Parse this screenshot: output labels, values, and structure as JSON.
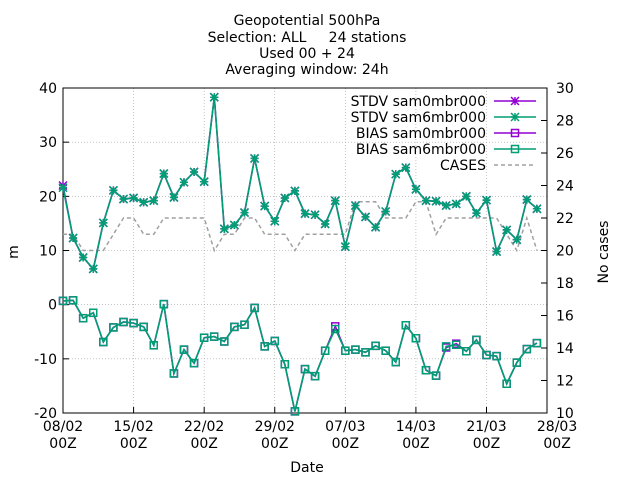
{
  "chart_data": {
    "type": "line",
    "title_lines": [
      "Geopotential 500hPa",
      "Selection: ALL     24 stations",
      "Used 00 + 24",
      "Averaging window: 24h"
    ],
    "xlabel": "Date",
    "ylabel": "m",
    "y2label": "No cases",
    "ylim": [
      -20,
      40
    ],
    "y2lim": [
      10,
      30
    ],
    "yticks": [
      -20,
      -10,
      0,
      10,
      20,
      30,
      40
    ],
    "y2ticks": [
      10,
      12,
      14,
      16,
      18,
      20,
      22,
      24,
      26,
      28,
      30
    ],
    "xlim_days": [
      0,
      48
    ],
    "xticks": [
      {
        "day": 0,
        "line1": "08/02",
        "line2": "00Z"
      },
      {
        "day": 7,
        "line1": "15/02",
        "line2": "00Z"
      },
      {
        "day": 14,
        "line1": "22/02",
        "line2": "00Z"
      },
      {
        "day": 21,
        "line1": "29/02",
        "line2": "00Z"
      },
      {
        "day": 28,
        "line1": "07/03",
        "line2": "00Z"
      },
      {
        "day": 35,
        "line1": "14/03",
        "line2": "00Z"
      },
      {
        "day": 42,
        "line1": "21/03",
        "line2": "00Z"
      },
      {
        "day": 49,
        "line1": "28/03",
        "line2": "00Z"
      }
    ],
    "grid": true,
    "legend_position": "top-right",
    "x_days": [
      0,
      1,
      2,
      3,
      4,
      5,
      6,
      7,
      8,
      9,
      10,
      11,
      12,
      13,
      14,
      15,
      16,
      17,
      18,
      19,
      20,
      21,
      22,
      23,
      24,
      25,
      26,
      27,
      28,
      29,
      30,
      31,
      32,
      33,
      34,
      35,
      36,
      37,
      38,
      39,
      40,
      41,
      42,
      43,
      44,
      45,
      46,
      47
    ],
    "series": [
      {
        "name": "STDV sam0mbr000",
        "color": "#9400d3",
        "marker": "star",
        "axis": "y",
        "values": [
          22.0,
          12.3,
          8.7,
          6.6,
          15.1,
          21.1,
          19.5,
          19.7,
          18.9,
          19.2,
          24.2,
          19.8,
          22.6,
          24.5,
          22.7,
          38.3,
          14.0,
          14.7,
          17.0,
          27.0,
          18.2,
          15.4,
          19.7,
          21.0,
          16.8,
          16.6,
          14.9,
          19.2,
          10.7,
          18.3,
          16.2,
          14.3,
          17.2,
          24.1,
          25.3,
          21.3,
          19.2,
          19.1,
          18.3,
          18.6,
          20.0,
          16.9,
          19.3,
          9.8,
          13.8,
          12.0,
          19.4,
          17.7
        ]
      },
      {
        "name": "STDV sam6mbr000",
        "color": "#009e73",
        "marker": "star",
        "axis": "y",
        "values": [
          21.6,
          12.3,
          8.7,
          6.6,
          15.1,
          21.1,
          19.5,
          19.7,
          18.9,
          19.2,
          24.2,
          19.8,
          22.6,
          24.5,
          22.7,
          38.3,
          14.0,
          14.7,
          17.0,
          27.0,
          18.2,
          15.4,
          19.7,
          21.0,
          16.8,
          16.6,
          14.9,
          19.2,
          10.7,
          18.3,
          16.2,
          14.3,
          17.2,
          24.1,
          25.3,
          21.3,
          19.2,
          19.1,
          18.3,
          18.6,
          20.0,
          16.9,
          19.3,
          9.8,
          13.8,
          12.0,
          19.4,
          17.7
        ]
      },
      {
        "name": "BIAS sam0mbr000",
        "color": "#9400d3",
        "marker": "square",
        "axis": "y",
        "values": [
          0.7,
          0.8,
          -2.5,
          -1.5,
          -6.9,
          -4.2,
          -3.2,
          -3.4,
          -4.1,
          -7.5,
          0.1,
          -12.7,
          -8.3,
          -10.8,
          -6.1,
          -5.9,
          -6.8,
          -4.1,
          -3.7,
          -0.6,
          -7.7,
          -6.7,
          -11.0,
          -19.7,
          -11.9,
          -13.2,
          -8.5,
          -4.0,
          -8.5,
          -8.3,
          -8.8,
          -7.6,
          -8.5,
          -10.6,
          -3.8,
          -6.2,
          -12.1,
          -13.1,
          -7.9,
          -7.2,
          -8.6,
          -6.5,
          -9.3,
          -9.5,
          -14.6,
          -10.7,
          -8.2,
          -7.1
        ]
      },
      {
        "name": "BIAS sam6mbr000",
        "color": "#009e73",
        "marker": "square",
        "axis": "y",
        "values": [
          0.7,
          0.8,
          -2.5,
          -1.5,
          -6.9,
          -4.2,
          -3.2,
          -3.4,
          -4.1,
          -7.5,
          0.1,
          -12.7,
          -8.3,
          -10.8,
          -6.1,
          -5.9,
          -6.8,
          -4.1,
          -3.7,
          -0.6,
          -7.7,
          -6.7,
          -11.0,
          -19.7,
          -11.9,
          -13.2,
          -8.5,
          -4.5,
          -8.5,
          -8.3,
          -8.8,
          -7.6,
          -8.5,
          -10.6,
          -3.8,
          -6.2,
          -12.1,
          -13.1,
          -7.7,
          -7.4,
          -8.6,
          -6.5,
          -9.3,
          -9.5,
          -14.6,
          -10.7,
          -8.2,
          -7.1
        ]
      },
      {
        "name": "CASES",
        "color": "#a0a0a0",
        "marker": "none",
        "axis": "y2",
        "dashed": true,
        "values": [
          21,
          21,
          20,
          20,
          20,
          21,
          22,
          22,
          21,
          21,
          22,
          22,
          22,
          22,
          22,
          20,
          21,
          21,
          22,
          22,
          21,
          21,
          21,
          20,
          21,
          21,
          21,
          21,
          21,
          23,
          23,
          23,
          22,
          22,
          22,
          23,
          23,
          21,
          22,
          22,
          22,
          22,
          22,
          22,
          21,
          20,
          22,
          20
        ]
      }
    ]
  }
}
